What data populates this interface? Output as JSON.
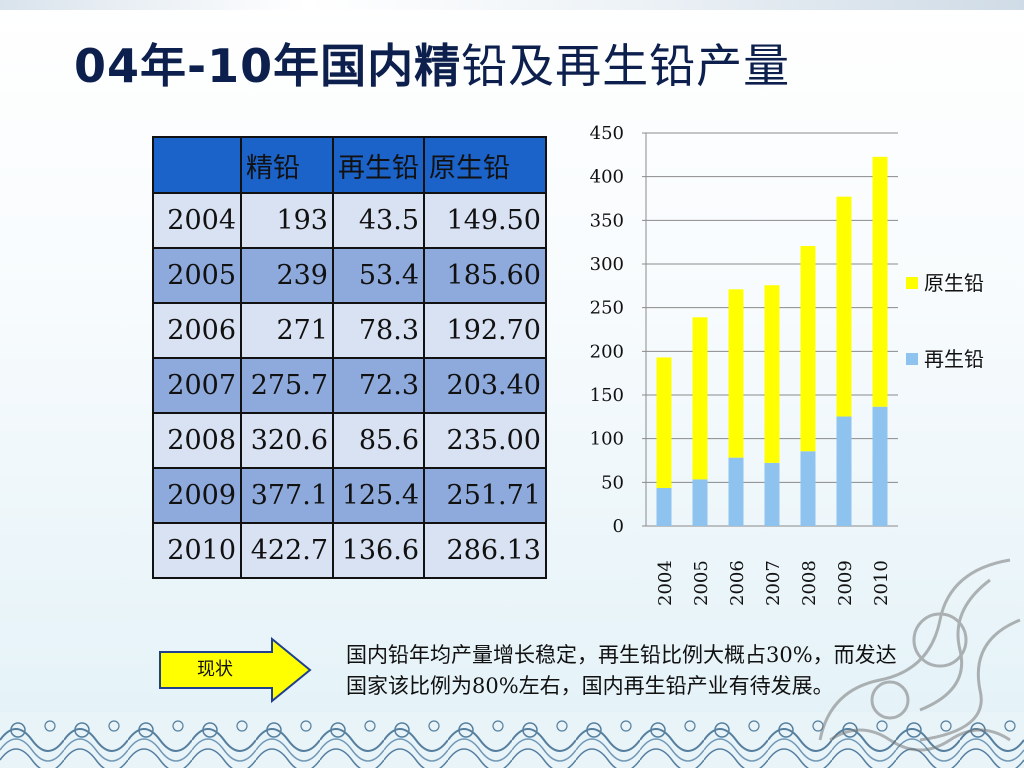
{
  "slide": {
    "title_bold": "04年-10年国内精",
    "title_rest": "铅及再生铅产量"
  },
  "table": {
    "headers": [
      "",
      "精铅",
      "再生铅",
      "原生铅"
    ],
    "rows": [
      [
        "2004",
        "193",
        "43.5",
        "149.50"
      ],
      [
        "2005",
        "239",
        "53.4",
        "185.60"
      ],
      [
        "2006",
        "271",
        "78.3",
        "192.70"
      ],
      [
        "2007",
        "275.7",
        "72.3",
        "203.40"
      ],
      [
        "2008",
        "320.6",
        "85.6",
        "235.00"
      ],
      [
        "2009",
        "377.1",
        "125.4",
        "251.71"
      ],
      [
        "2010",
        "422.7",
        "136.6",
        "286.13"
      ]
    ]
  },
  "chart_data": {
    "type": "bar",
    "stacked": true,
    "categories": [
      "2004",
      "2005",
      "2006",
      "2007",
      "2008",
      "2009",
      "2010"
    ],
    "series": [
      {
        "name": "再生铅",
        "values": [
          43.5,
          53.4,
          78.3,
          72.3,
          85.6,
          125.4,
          136.6
        ],
        "color": "#8fc3ef"
      },
      {
        "name": "原生铅",
        "values": [
          149.5,
          185.6,
          192.7,
          203.4,
          235.0,
          251.71,
          286.13
        ],
        "color": "#ffff00"
      }
    ],
    "ylim": [
      0,
      450
    ],
    "yticks": [
      0,
      50,
      100,
      150,
      200,
      250,
      300,
      350,
      400,
      450
    ],
    "grid": true,
    "legend_position": "right",
    "legend_order": [
      "原生铅",
      "再生铅"
    ]
  },
  "callout": {
    "button_label": "现状",
    "arrow_color": "#ffff00",
    "text": "国内铅年均产量增长稳定，再生铅比例大概占30%，而发达国家该比例为80%左右，国内再生铅产业有待发展。"
  }
}
